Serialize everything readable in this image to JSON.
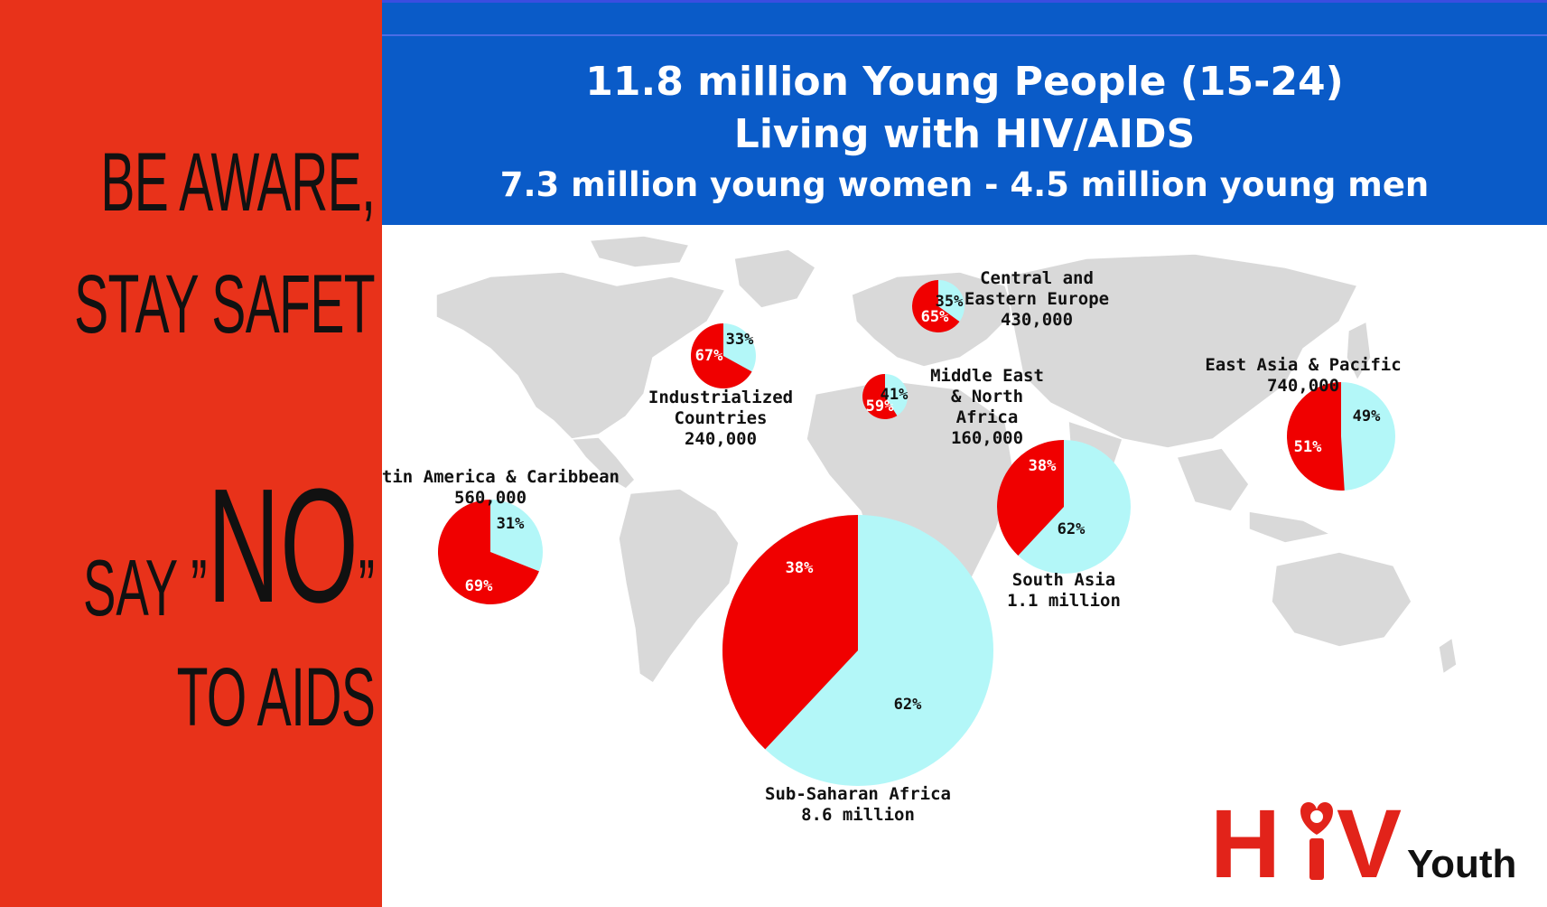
{
  "slogan": {
    "line1": "BE AWARE,",
    "line2": "STAY SAFET",
    "line3_say": "SAY ”",
    "line3_no": "NO",
    "line3_close": "”",
    "line4": "TO AIDS"
  },
  "header": {
    "title_line1": "11.8 million Young People (15-24)",
    "title_line2": "Living with HIV/AIDS",
    "title_line3": "7.3 million young women - 4.5 million young men"
  },
  "colors": {
    "women": "#f00000",
    "men": "#b3f7f8",
    "header_bg": "#0a5bc8",
    "banner_bg": "#e8321a",
    "land": "#d9d9d9"
  },
  "chart_data": {
    "type": "pie",
    "series": [
      {
        "region": "Central and\nEastern Europe",
        "label_lines": [
          "Central and",
          "Eastern Europe",
          "430,000"
        ],
        "total": "430,000",
        "women_pct": 65,
        "men_pct": 35,
        "women_label": "65%",
        "men_label": "35%"
      },
      {
        "region": "Industrialized Countries",
        "label_lines": [
          "Industrialized",
          "Countries",
          "240,000"
        ],
        "total": "240,000",
        "women_pct": 67,
        "men_pct": 33,
        "women_label": "67%",
        "men_label": "33%"
      },
      {
        "region": "Middle East & North Africa",
        "label_lines": [
          "Middle East",
          "& North",
          "Africa",
          "160,000"
        ],
        "total": "160,000",
        "women_pct": 59,
        "men_pct": 41,
        "women_label": "59%",
        "men_label": "41%"
      },
      {
        "region": "East Asia & Pacific",
        "label_lines": [
          "East Asia & Pacific",
          "740,000"
        ],
        "total": "740,000",
        "women_pct": 51,
        "men_pct": 49,
        "women_label": "51%",
        "men_label": "49%"
      },
      {
        "region": "Latin America & Caribbean",
        "label_lines": [
          "Latin America & Caribbean",
          "560,000"
        ],
        "total": "560,000",
        "women_pct": 69,
        "men_pct": 31,
        "women_label": "69%",
        "men_label": "31%"
      },
      {
        "region": "South Asia",
        "label_lines": [
          "South Asia",
          "1.1 million"
        ],
        "total": "1.1 million",
        "women_pct": 38,
        "men_pct": 62,
        "women_label": "38%",
        "men_label": "62%"
      },
      {
        "region": "Sub-Saharan Africa",
        "label_lines": [
          "Sub-Saharan Africa",
          "8.6 million"
        ],
        "total": "8.6 million",
        "women_pct": 38,
        "men_pct": 62,
        "women_label": "38%",
        "men_label": "62%"
      }
    ]
  },
  "logo": {
    "letter_h": "H",
    "letter_v": "V",
    "word": "Youth"
  }
}
